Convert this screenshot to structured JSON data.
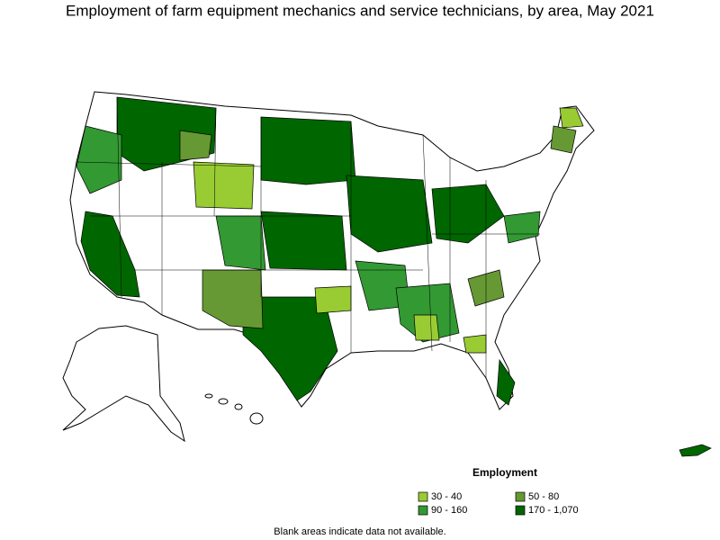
{
  "title": "Employment of farm equipment mechanics and service technicians, by area, May 2021",
  "legend": {
    "title": "Employment",
    "items": [
      {
        "label": "30 - 40",
        "color": "#99cc33"
      },
      {
        "label": "50 - 80",
        "color": "#669933"
      },
      {
        "label": "90 - 160",
        "color": "#339933"
      },
      {
        "label": "170 - 1,070",
        "color": "#006600"
      }
    ]
  },
  "footnote": "Blank areas indicate data not available."
}
